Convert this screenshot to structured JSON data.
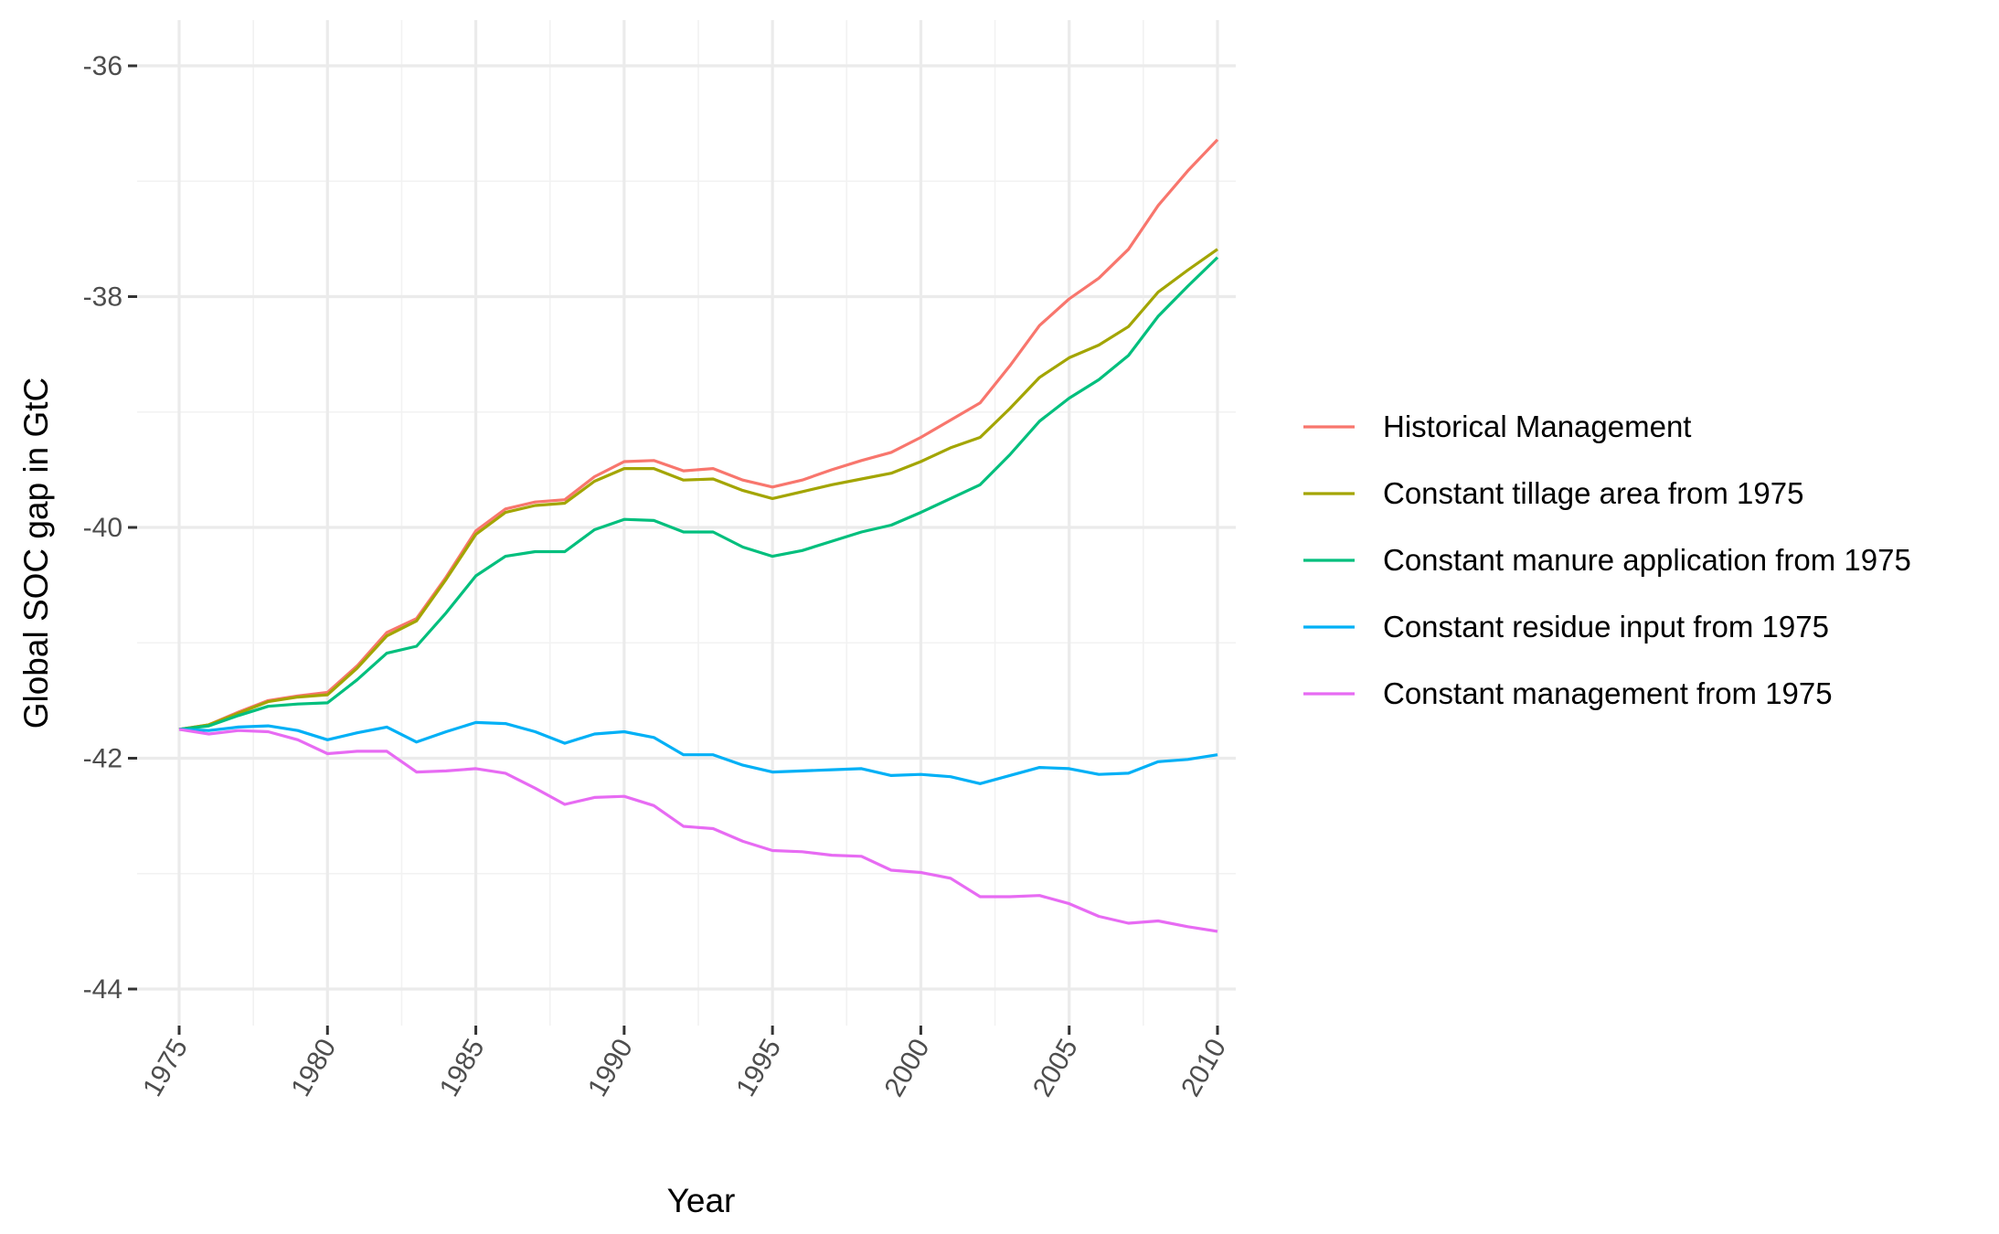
{
  "chart_data": {
    "type": "line",
    "xlabel": "Year",
    "ylabel": "Global SOC gap in GtC",
    "xlim": [
      1975,
      2010
    ],
    "ylim": [
      -44,
      -36
    ],
    "x_ticks": [
      1975,
      1980,
      1985,
      1990,
      1995,
      2000,
      2005,
      2010
    ],
    "y_ticks": [
      -36,
      -38,
      -40,
      -42,
      -44
    ],
    "y_minor_ticks": [
      -37,
      -39,
      -41,
      -43
    ],
    "grid": true,
    "legend_position": "right",
    "x": [
      1975,
      1976,
      1977,
      1978,
      1979,
      1980,
      1981,
      1982,
      1983,
      1984,
      1985,
      1986,
      1987,
      1988,
      1989,
      1990,
      1991,
      1992,
      1993,
      1994,
      1995,
      1996,
      1997,
      1998,
      1999,
      2000,
      2001,
      2002,
      2003,
      2004,
      2005,
      2006,
      2007,
      2008,
      2009,
      2010
    ],
    "series": [
      {
        "name": "Historical Management",
        "color": "#F8766D",
        "values": [
          -41.75,
          -41.71,
          -41.6,
          -41.5,
          -41.46,
          -41.43,
          -41.2,
          -40.91,
          -40.79,
          -40.43,
          -40.03,
          -39.84,
          -39.78,
          -39.76,
          -39.56,
          -39.43,
          -39.42,
          -39.51,
          -39.49,
          -39.59,
          -39.65,
          -39.59,
          -39.5,
          -39.42,
          -39.35,
          -39.22,
          -39.07,
          -38.92,
          -38.6,
          -38.25,
          -38.02,
          -37.84,
          -37.59,
          -37.21,
          -36.91,
          -36.64
        ]
      },
      {
        "name": "Constant tillage area from 1975",
        "color": "#A3A500",
        "values": [
          -41.75,
          -41.71,
          -41.61,
          -41.51,
          -41.47,
          -41.45,
          -41.22,
          -40.94,
          -40.81,
          -40.45,
          -40.06,
          -39.87,
          -39.81,
          -39.79,
          -39.6,
          -39.49,
          -39.49,
          -39.59,
          -39.58,
          -39.68,
          -39.75,
          -39.69,
          -39.63,
          -39.58,
          -39.53,
          -39.43,
          -39.31,
          -39.22,
          -38.97,
          -38.7,
          -38.53,
          -38.42,
          -38.26,
          -37.96,
          -37.77,
          -37.59
        ]
      },
      {
        "name": "Constant manure application from 1975",
        "color": "#00BF7D",
        "values": [
          -41.75,
          -41.72,
          -41.63,
          -41.55,
          -41.53,
          -41.52,
          -41.32,
          -41.09,
          -41.03,
          -40.74,
          -40.42,
          -40.25,
          -40.21,
          -40.21,
          -40.02,
          -39.93,
          -39.94,
          -40.04,
          -40.04,
          -40.17,
          -40.25,
          -40.2,
          -40.12,
          -40.04,
          -39.98,
          -39.87,
          -39.75,
          -39.63,
          -39.37,
          -39.08,
          -38.88,
          -38.72,
          -38.51,
          -38.17,
          -37.91,
          -37.66
        ]
      },
      {
        "name": "Constant residue input from 1975",
        "color": "#00B0F6",
        "values": [
          -41.75,
          -41.76,
          -41.73,
          -41.72,
          -41.76,
          -41.84,
          -41.78,
          -41.73,
          -41.86,
          -41.77,
          -41.69,
          -41.7,
          -41.77,
          -41.87,
          -41.79,
          -41.77,
          -41.82,
          -41.97,
          -41.97,
          -42.06,
          -42.12,
          -42.11,
          -42.1,
          -42.09,
          -42.15,
          -42.14,
          -42.16,
          -42.22,
          -42.15,
          -42.08,
          -42.09,
          -42.14,
          -42.13,
          -42.03,
          -42.01,
          -41.97
        ]
      },
      {
        "name": "Constant management from 1975",
        "color": "#E76BF3",
        "values": [
          -41.75,
          -41.79,
          -41.76,
          -41.77,
          -41.84,
          -41.96,
          -41.94,
          -41.94,
          -42.12,
          -42.11,
          -42.09,
          -42.13,
          -42.26,
          -42.4,
          -42.34,
          -42.33,
          -42.41,
          -42.59,
          -42.61,
          -42.72,
          -42.8,
          -42.81,
          -42.84,
          -42.85,
          -42.97,
          -42.99,
          -43.04,
          -43.2,
          -43.2,
          -43.19,
          -43.26,
          -43.37,
          -43.43,
          -43.41,
          -43.46,
          -43.5
        ]
      }
    ]
  }
}
